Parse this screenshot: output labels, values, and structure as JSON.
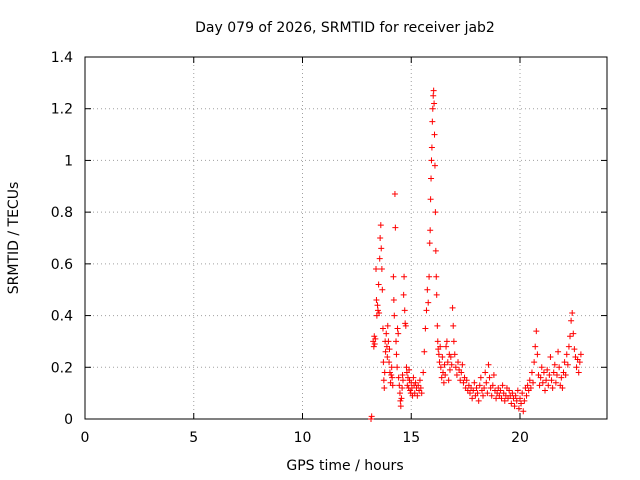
{
  "chart_data": {
    "type": "scatter",
    "title": "Day 079 of 2026, SRMTID for receiver jab2",
    "xlabel": "GPS time / hours",
    "ylabel": "SRMTID / TECUs",
    "xlim": [
      0,
      24
    ],
    "ylim": [
      0,
      1.4
    ],
    "xticks": [
      0,
      5,
      10,
      15,
      20
    ],
    "yticks": [
      0,
      0.2,
      0.4,
      0.6,
      0.8,
      1,
      1.2,
      1.4
    ],
    "xtick_labels": [
      "0",
      "5",
      "10",
      "15",
      "20"
    ],
    "ytick_labels": [
      "0",
      "0.2",
      "0.4",
      "0.6",
      "0.8",
      "1",
      "1.2",
      "1.4"
    ],
    "grid": true,
    "legend": "none",
    "marker": "plus",
    "color": "#ff0000",
    "series": [
      {
        "name": "jab2",
        "points": [
          [
            13.15,
            0.0
          ],
          [
            13.18,
            0.01
          ],
          [
            13.25,
            0.3
          ],
          [
            13.28,
            0.28
          ],
          [
            13.3,
            0.32
          ],
          [
            13.32,
            0.29
          ],
          [
            13.35,
            0.31
          ],
          [
            13.38,
            0.58
          ],
          [
            13.4,
            0.46
          ],
          [
            13.42,
            0.4
          ],
          [
            13.45,
            0.44
          ],
          [
            13.47,
            0.42
          ],
          [
            13.5,
            0.52
          ],
          [
            13.52,
            0.41
          ],
          [
            13.55,
            0.62
          ],
          [
            13.57,
            0.7
          ],
          [
            13.6,
            0.75
          ],
          [
            13.62,
            0.66
          ],
          [
            13.65,
            0.58
          ],
          [
            13.67,
            0.5
          ],
          [
            13.7,
            0.35
          ],
          [
            13.72,
            0.22
          ],
          [
            13.74,
            0.15
          ],
          [
            13.76,
            0.12
          ],
          [
            13.78,
            0.18
          ],
          [
            13.8,
            0.3
          ],
          [
            13.82,
            0.26
          ],
          [
            13.85,
            0.33
          ],
          [
            13.88,
            0.28
          ],
          [
            13.9,
            0.24
          ],
          [
            13.92,
            0.36
          ],
          [
            13.95,
            0.3
          ],
          [
            13.98,
            0.22
          ],
          [
            14.0,
            0.27
          ],
          [
            14.02,
            0.18
          ],
          [
            14.05,
            0.14
          ],
          [
            14.08,
            0.17
          ],
          [
            14.1,
            0.2
          ],
          [
            14.12,
            0.16
          ],
          [
            14.15,
            0.13
          ],
          [
            14.18,
            0.55
          ],
          [
            14.2,
            0.46
          ],
          [
            14.22,
            0.4
          ],
          [
            14.25,
            0.87
          ],
          [
            14.27,
            0.74
          ],
          [
            14.3,
            0.3
          ],
          [
            14.32,
            0.25
          ],
          [
            14.35,
            0.2
          ],
          [
            14.37,
            0.35
          ],
          [
            14.4,
            0.33
          ],
          [
            14.42,
            0.16
          ],
          [
            14.45,
            0.13
          ],
          [
            14.48,
            0.1
          ],
          [
            14.5,
            0.07
          ],
          [
            14.52,
            0.05
          ],
          [
            14.55,
            0.08
          ],
          [
            14.58,
            0.12
          ],
          [
            14.6,
            0.17
          ],
          [
            14.62,
            0.15
          ],
          [
            14.65,
            0.48
          ],
          [
            14.67,
            0.55
          ],
          [
            14.7,
            0.42
          ],
          [
            14.72,
            0.37
          ],
          [
            14.75,
            0.36
          ],
          [
            14.78,
            0.2
          ],
          [
            14.8,
            0.18
          ],
          [
            14.82,
            0.13
          ],
          [
            14.85,
            0.16
          ],
          [
            14.88,
            0.12
          ],
          [
            14.9,
            0.19
          ],
          [
            14.92,
            0.15
          ],
          [
            14.95,
            0.11
          ],
          [
            14.98,
            0.1
          ],
          [
            15.0,
            0.14
          ],
          [
            15.03,
            0.12
          ],
          [
            15.06,
            0.09
          ],
          [
            15.1,
            0.16
          ],
          [
            15.13,
            0.13
          ],
          [
            15.16,
            0.1
          ],
          [
            15.2,
            0.14
          ],
          [
            15.24,
            0.12
          ],
          [
            15.28,
            0.09
          ],
          [
            15.32,
            0.13
          ],
          [
            15.36,
            0.11
          ],
          [
            15.4,
            0.15
          ],
          [
            15.44,
            0.12
          ],
          [
            15.48,
            0.1
          ],
          [
            15.55,
            0.18
          ],
          [
            15.6,
            0.26
          ],
          [
            15.65,
            0.35
          ],
          [
            15.7,
            0.42
          ],
          [
            15.74,
            0.5
          ],
          [
            15.78,
            0.45
          ],
          [
            15.82,
            0.55
          ],
          [
            15.85,
            0.68
          ],
          [
            15.87,
            0.73
          ],
          [
            15.89,
            0.85
          ],
          [
            15.91,
            0.93
          ],
          [
            15.93,
            1.0
          ],
          [
            15.95,
            1.05
          ],
          [
            15.97,
            1.15
          ],
          [
            15.99,
            1.2
          ],
          [
            16.01,
            1.25
          ],
          [
            16.03,
            1.27
          ],
          [
            16.05,
            1.22
          ],
          [
            16.07,
            1.1
          ],
          [
            16.09,
            0.98
          ],
          [
            16.11,
            0.8
          ],
          [
            16.13,
            0.65
          ],
          [
            16.15,
            0.55
          ],
          [
            16.17,
            0.48
          ],
          [
            16.2,
            0.36
          ],
          [
            16.22,
            0.3
          ],
          [
            16.24,
            0.27
          ],
          [
            16.27,
            0.25
          ],
          [
            16.3,
            0.22
          ],
          [
            16.33,
            0.28
          ],
          [
            16.36,
            0.2
          ],
          [
            16.4,
            0.16
          ],
          [
            16.43,
            0.24
          ],
          [
            16.46,
            0.18
          ],
          [
            16.5,
            0.14
          ],
          [
            16.53,
            0.21
          ],
          [
            16.56,
            0.17
          ],
          [
            16.6,
            0.28
          ],
          [
            16.64,
            0.3
          ],
          [
            16.68,
            0.22
          ],
          [
            16.72,
            0.15
          ],
          [
            16.75,
            0.25
          ],
          [
            16.78,
            0.19
          ],
          [
            16.82,
            0.24
          ],
          [
            16.86,
            0.21
          ],
          [
            16.9,
            0.43
          ],
          [
            16.93,
            0.36
          ],
          [
            16.96,
            0.3
          ],
          [
            17.0,
            0.25
          ],
          [
            17.05,
            0.2
          ],
          [
            17.1,
            0.17
          ],
          [
            17.15,
            0.22
          ],
          [
            17.2,
            0.19
          ],
          [
            17.25,
            0.15
          ],
          [
            17.3,
            0.18
          ],
          [
            17.35,
            0.21
          ],
          [
            17.4,
            0.14
          ],
          [
            17.45,
            0.16
          ],
          [
            17.5,
            0.12
          ],
          [
            17.55,
            0.15
          ],
          [
            17.6,
            0.11
          ],
          [
            17.65,
            0.13
          ],
          [
            17.7,
            0.1
          ],
          [
            17.75,
            0.12
          ],
          [
            17.8,
            0.08
          ],
          [
            17.85,
            0.11
          ],
          [
            17.9,
            0.14
          ],
          [
            17.95,
            0.09
          ],
          [
            18.0,
            0.12
          ],
          [
            18.05,
            0.1
          ],
          [
            18.1,
            0.07
          ],
          [
            18.15,
            0.13
          ],
          [
            18.2,
            0.16
          ],
          [
            18.25,
            0.11
          ],
          [
            18.3,
            0.09
          ],
          [
            18.35,
            0.12
          ],
          [
            18.4,
            0.18
          ],
          [
            18.45,
            0.14
          ],
          [
            18.5,
            0.1
          ],
          [
            18.55,
            0.21
          ],
          [
            18.6,
            0.16
          ],
          [
            18.65,
            0.12
          ],
          [
            18.7,
            0.09
          ],
          [
            18.75,
            0.13
          ],
          [
            18.8,
            0.17
          ],
          [
            18.85,
            0.11
          ],
          [
            18.9,
            0.08
          ],
          [
            18.95,
            0.1
          ],
          [
            19.0,
            0.12
          ],
          [
            19.05,
            0.09
          ],
          [
            19.1,
            0.11
          ],
          [
            19.15,
            0.08
          ],
          [
            19.2,
            0.13
          ],
          [
            19.25,
            0.1
          ],
          [
            19.3,
            0.07
          ],
          [
            19.35,
            0.09
          ],
          [
            19.4,
            0.12
          ],
          [
            19.45,
            0.08
          ],
          [
            19.5,
            0.11
          ],
          [
            19.55,
            0.09
          ],
          [
            19.6,
            0.06
          ],
          [
            19.65,
            0.1
          ],
          [
            19.7,
            0.08
          ],
          [
            19.75,
            0.05
          ],
          [
            19.8,
            0.09
          ],
          [
            19.85,
            0.07
          ],
          [
            19.9,
            0.11
          ],
          [
            19.95,
            0.04
          ],
          [
            20.0,
            0.08
          ],
          [
            20.05,
            0.06
          ],
          [
            20.1,
            0.1
          ],
          [
            20.15,
            0.03
          ],
          [
            20.2,
            0.07
          ],
          [
            20.25,
            0.12
          ],
          [
            20.3,
            0.09
          ],
          [
            20.35,
            0.13
          ],
          [
            20.4,
            0.11
          ],
          [
            20.45,
            0.15
          ],
          [
            20.5,
            0.12
          ],
          [
            20.55,
            0.18
          ],
          [
            20.6,
            0.14
          ],
          [
            20.65,
            0.22
          ],
          [
            20.7,
            0.28
          ],
          [
            20.75,
            0.34
          ],
          [
            20.8,
            0.25
          ],
          [
            20.85,
            0.17
          ],
          [
            20.9,
            0.13
          ],
          [
            20.95,
            0.16
          ],
          [
            21.0,
            0.2
          ],
          [
            21.05,
            0.14
          ],
          [
            21.1,
            0.18
          ],
          [
            21.15,
            0.11
          ],
          [
            21.2,
            0.15
          ],
          [
            21.25,
            0.19
          ],
          [
            21.3,
            0.13
          ],
          [
            21.35,
            0.17
          ],
          [
            21.4,
            0.24
          ],
          [
            21.45,
            0.15
          ],
          [
            21.5,
            0.12
          ],
          [
            21.55,
            0.18
          ],
          [
            21.6,
            0.21
          ],
          [
            21.65,
            0.14
          ],
          [
            21.7,
            0.17
          ],
          [
            21.75,
            0.26
          ],
          [
            21.8,
            0.2
          ],
          [
            21.85,
            0.13
          ],
          [
            21.9,
            0.16
          ],
          [
            21.95,
            0.12
          ],
          [
            22.0,
            0.18
          ],
          [
            22.05,
            0.22
          ],
          [
            22.1,
            0.17
          ],
          [
            22.15,
            0.25
          ],
          [
            22.2,
            0.21
          ],
          [
            22.25,
            0.28
          ],
          [
            22.3,
            0.32
          ],
          [
            22.35,
            0.38
          ],
          [
            22.4,
            0.41
          ],
          [
            22.45,
            0.33
          ],
          [
            22.5,
            0.27
          ],
          [
            22.55,
            0.24
          ],
          [
            22.6,
            0.2
          ],
          [
            22.65,
            0.23
          ],
          [
            22.7,
            0.18
          ],
          [
            22.75,
            0.22
          ],
          [
            22.8,
            0.25
          ]
        ]
      }
    ]
  }
}
